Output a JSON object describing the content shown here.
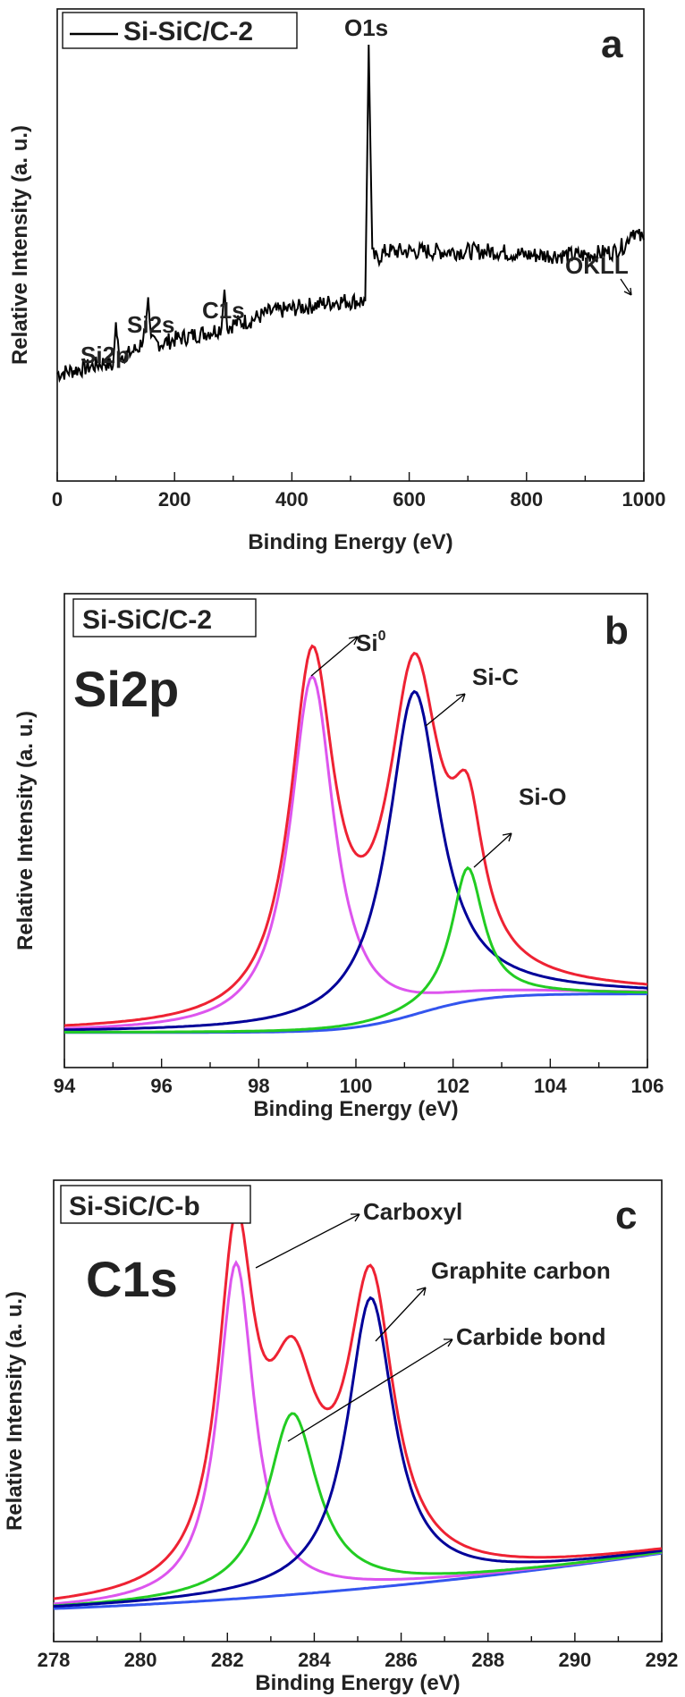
{
  "chart_data": [
    {
      "type": "line",
      "panel": "a",
      "legend": "Si-SiC/C-2",
      "xlabel": "Binding Energy (eV)",
      "ylabel": "Relative Intensity (a. u.)",
      "xlim": [
        0,
        1000
      ],
      "ylim": [
        0,
        100
      ],
      "xticks": [
        0,
        200,
        400,
        600,
        800,
        1000
      ],
      "legend_position": "top-left",
      "series": [
        {
          "color": "#000000",
          "x": [
            0,
            30,
            60,
            80,
            95,
            100,
            105,
            120,
            140,
            150,
            155,
            160,
            180,
            200,
            230,
            260,
            280,
            285,
            290,
            300,
            330,
            360,
            400,
            440,
            480,
            510,
            525,
            531,
            537,
            545,
            560,
            600,
            650,
            700,
            750,
            800,
            850,
            900,
            950,
            970,
            980,
            990,
            1000
          ],
          "y": [
            14,
            15,
            16,
            17,
            16,
            27,
            19,
            19,
            21,
            25,
            34,
            22,
            22,
            23,
            24,
            25,
            26,
            36,
            26,
            27,
            28,
            30,
            31,
            32,
            33,
            33,
            33,
            100,
            45,
            44,
            46,
            46,
            46,
            46,
            46,
            45,
            45,
            45,
            46,
            48,
            52,
            50,
            49
          ]
        }
      ],
      "annotations": [
        {
          "text": "Si2p",
          "x": 100
        },
        {
          "text": "Si2s",
          "x": 155
        },
        {
          "text": "C1s",
          "x": 285
        },
        {
          "text": "O1s",
          "x": 531
        },
        {
          "text": "OKLL",
          "x": 980
        }
      ]
    },
    {
      "type": "line",
      "panel": "b",
      "legend": "Si-SiC/C-2",
      "inset_title": "Si2p",
      "xlabel": "Binding Energy (eV)",
      "ylabel": "Relative Intensity (a. u.)",
      "xlim": [
        94,
        106
      ],
      "ylim": [
        -0.1,
        1.25
      ],
      "xticks": [
        94,
        96,
        98,
        100,
        102,
        104,
        106
      ],
      "series": [
        {
          "color": "#3355ee",
          "background": true,
          "base0": 0.0,
          "base1": 0.11,
          "center": 101.3,
          "width": 0.7
        },
        {
          "color": "#dd55ee",
          "peaks": [
            {
              "center": 99.1,
              "amp": 1.01,
              "width": 0.55
            }
          ]
        },
        {
          "color": "#000099",
          "peaks": [
            {
              "center": 101.2,
              "amp": 0.92,
              "width": 0.65
            }
          ]
        },
        {
          "color": "#22cc22",
          "peaks": [
            {
              "center": 102.3,
              "amp": 0.38,
              "width": 0.4
            }
          ]
        },
        {
          "color": "#ee2233",
          "sum": true
        }
      ],
      "annotations": [
        {
          "text": "Si",
          "sup": "0"
        },
        {
          "text": "Si-C"
        },
        {
          "text": "Si-O"
        }
      ]
    },
    {
      "type": "line",
      "panel": "c",
      "legend": "Si-SiC/C-b",
      "inset_title": "C1s",
      "xlabel": "Binding Energy (eV)",
      "ylabel": "Relative Intensity (a. u.)",
      "xlim": [
        278,
        292
      ],
      "ylim": [
        -0.1,
        1.3
      ],
      "xticks": [
        278,
        280,
        282,
        284,
        286,
        288,
        290,
        292
      ],
      "series": [
        {
          "color": "#3355ee",
          "background": true,
          "base0": 0.0,
          "base1": 0.06,
          "slope": 0.005
        },
        {
          "color": "#dd55ee",
          "peaks": [
            {
              "center": 282.2,
              "amp": 1.02,
              "width": 0.5
            }
          ]
        },
        {
          "color": "#22cc22",
          "peaks": [
            {
              "center": 283.5,
              "amp": 0.55,
              "width": 0.7
            }
          ]
        },
        {
          "color": "#000099",
          "peaks": [
            {
              "center": 285.3,
              "amp": 0.88,
              "width": 0.65
            }
          ]
        },
        {
          "color": "#ee2233",
          "sum": true
        }
      ],
      "annotations": [
        {
          "text": "Carboxyl"
        },
        {
          "text": "Graphite carbon"
        },
        {
          "text": "Carbide bond"
        }
      ]
    }
  ]
}
